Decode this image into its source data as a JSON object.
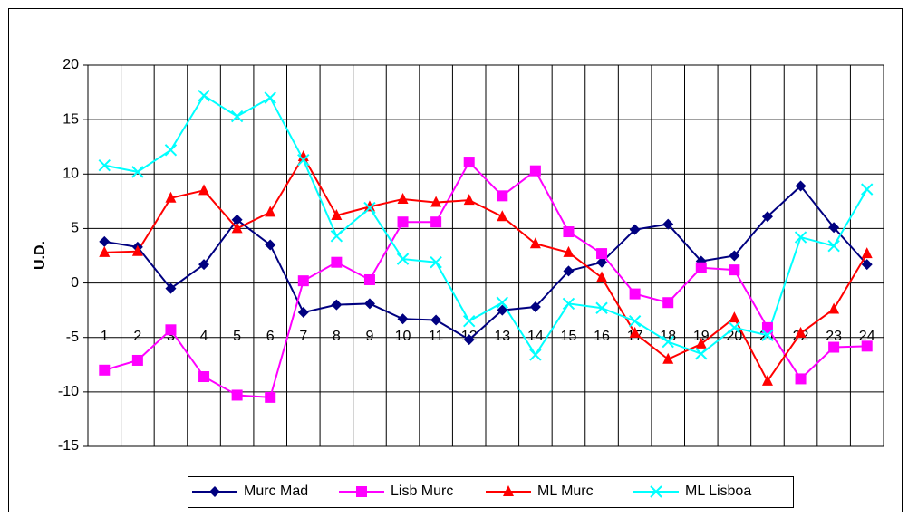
{
  "chart_data": {
    "type": "line",
    "y_label": "U.D.",
    "categories": [
      "1",
      "2",
      "3",
      "4",
      "5",
      "6",
      "7",
      "8",
      "9",
      "10",
      "11",
      "12",
      "13",
      "14",
      "15",
      "16",
      "17",
      "18",
      "19",
      "20",
      "21",
      "22",
      "23",
      "24"
    ],
    "ylim": [
      -15,
      20
    ],
    "yticks": [
      -15,
      -10,
      -5,
      0,
      5,
      10,
      15,
      20
    ],
    "grid": true,
    "series": [
      {
        "name": "Murc Mad",
        "color": "#000080",
        "marker": "diamond",
        "values": [
          3.8,
          3.3,
          -0.5,
          1.7,
          5.8,
          3.5,
          -2.7,
          -2.0,
          -1.9,
          -3.3,
          -3.4,
          -5.2,
          -2.5,
          -2.2,
          1.1,
          1.9,
          4.9,
          5.4,
          2.0,
          2.5,
          6.1,
          8.9,
          5.1,
          1.7
        ]
      },
      {
        "name": "Lisb Murc",
        "color": "#FF00FF",
        "marker": "square",
        "values": [
          -8.0,
          -7.1,
          -4.3,
          -8.6,
          -10.3,
          -10.5,
          0.2,
          1.9,
          0.3,
          5.6,
          5.6,
          11.1,
          8.0,
          10.3,
          4.7,
          2.7,
          -1.0,
          -1.8,
          1.4,
          1.2,
          -4.1,
          -8.8,
          -5.9,
          -5.8
        ]
      },
      {
        "name": "ML Murc",
        "color": "#FF0000",
        "marker": "triangle",
        "values": [
          2.8,
          2.9,
          7.8,
          8.5,
          5.0,
          6.5,
          11.6,
          6.2,
          7.0,
          7.7,
          7.4,
          7.6,
          6.1,
          3.6,
          2.8,
          0.5,
          -4.6,
          -7.0,
          -5.6,
          -3.2,
          -9.0,
          -4.6,
          -2.4,
          2.7
        ]
      },
      {
        "name": "ML Lisboa",
        "color": "#00FFFF",
        "marker": "x",
        "values": [
          10.8,
          10.2,
          12.2,
          17.2,
          15.3,
          17.0,
          11.3,
          4.3,
          6.9,
          2.2,
          1.9,
          -3.5,
          -1.8,
          -6.6,
          -1.9,
          -2.3,
          -3.5,
          -5.4,
          -6.5,
          -4.1,
          -4.8,
          4.2,
          3.4,
          8.6
        ]
      }
    ]
  }
}
